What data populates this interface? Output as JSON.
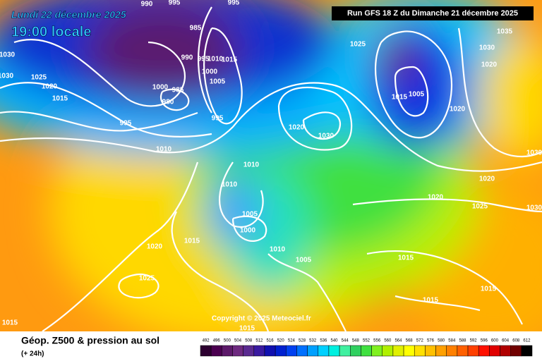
{
  "header": {
    "date": "Lundi 22 décembre 2025",
    "time": "19:00 locale",
    "run": "Run GFS 18 Z du Dimanche 21 décembre 2025"
  },
  "map": {
    "copyright": "Copyright © 2025 Meteociel.fr",
    "isobar_labels": [
      "990",
      "995",
      "995",
      "985",
      "990",
      "995",
      "1010",
      "1015",
      "1000",
      "1005",
      "1000",
      "985",
      "980",
      "995",
      "995",
      "1030",
      "1030",
      "1025",
      "1020",
      "1015",
      "1010",
      "1025",
      "1035",
      "1030",
      "1020",
      "1015",
      "1005",
      "1020",
      "1020",
      "1030",
      "1010",
      "1010",
      "1005",
      "1000",
      "1010",
      "1005",
      "1015",
      "1020",
      "1025",
      "1015",
      "1015",
      "1015",
      "1015",
      "1015",
      "1020",
      "1020",
      "1025",
      "1030",
      "1030"
    ]
  },
  "legend": {
    "title": "Géop. Z500 & pression au sol",
    "subtitle": "(+ 24h)",
    "scale": [
      492,
      496,
      500,
      504,
      508,
      512,
      516,
      520,
      524,
      528,
      532,
      536,
      540,
      544,
      548,
      552,
      556,
      560,
      564,
      568,
      572,
      576,
      580,
      584,
      588,
      592,
      596,
      600,
      604,
      608,
      612
    ],
    "colors": [
      "#2d0030",
      "#4b0050",
      "#5d1a6a",
      "#6e2a80",
      "#5a2a90",
      "#3a1aa0",
      "#1010b0",
      "#0020d0",
      "#0040f0",
      "#0070ff",
      "#00a0ff",
      "#00d0ff",
      "#00f0e0",
      "#40f0a0",
      "#30d060",
      "#40e040",
      "#80f020",
      "#b0f000",
      "#e0f000",
      "#ffff00",
      "#ffe000",
      "#ffc000",
      "#ffa000",
      "#ff8000",
      "#ff6000",
      "#ff4000",
      "#ff1000",
      "#e00000",
      "#b00000",
      "#700000",
      "#000000"
    ]
  }
}
